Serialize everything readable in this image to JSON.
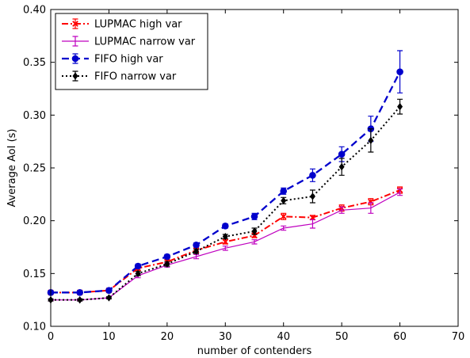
{
  "chart_data": {
    "type": "line",
    "title": "",
    "xlabel": "number of contenders",
    "ylabel": "Average AoI (s)",
    "xlim": [
      0,
      70
    ],
    "ylim": [
      0.1,
      0.4
    ],
    "xticks": [
      "0",
      "10",
      "20",
      "30",
      "40",
      "50",
      "60",
      "70"
    ],
    "yticks": [
      "0.10",
      "0.15",
      "0.20",
      "0.25",
      "0.30",
      "0.35",
      "0.40"
    ],
    "grid": false,
    "legend_position": "top-left",
    "x": [
      0,
      5,
      10,
      15,
      20,
      25,
      30,
      35,
      40,
      45,
      50,
      55,
      60
    ],
    "series": [
      {
        "name": "LUPMAC high var",
        "color": "#ff0000",
        "line_style": "dashdot",
        "marker": "x",
        "values": [
          0.132,
          0.132,
          0.134,
          0.155,
          0.161,
          0.172,
          0.18,
          0.186,
          0.204,
          0.203,
          0.212,
          0.218,
          0.229
        ],
        "errors": [
          0.001,
          0.001,
          0.001,
          0.002,
          0.002,
          0.002,
          0.002,
          0.002,
          0.003,
          0.002,
          0.003,
          0.003,
          0.003
        ]
      },
      {
        "name": "LUPMAC narrow var",
        "color": "#bf00bf",
        "line_style": "solid",
        "marker": "none",
        "values": [
          0.125,
          0.125,
          0.127,
          0.148,
          0.158,
          0.166,
          0.174,
          0.18,
          0.193,
          0.197,
          0.21,
          0.212,
          0.227
        ],
        "errors": [
          0.001,
          0.001,
          0.001,
          0.002,
          0.002,
          0.002,
          0.002,
          0.002,
          0.002,
          0.004,
          0.003,
          0.005,
          0.003
        ]
      },
      {
        "name": "FIFO high var",
        "color": "#0000cc",
        "line_style": "dashed",
        "marker": "circle",
        "values": [
          0.132,
          0.132,
          0.134,
          0.157,
          0.166,
          0.177,
          0.195,
          0.204,
          0.228,
          0.243,
          0.263,
          0.287,
          0.341
        ],
        "errors": [
          0.001,
          0.001,
          0.001,
          0.002,
          0.002,
          0.002,
          0.002,
          0.003,
          0.003,
          0.006,
          0.007,
          0.012,
          0.02
        ]
      },
      {
        "name": "FIFO narrow var",
        "color": "#000000",
        "line_style": "dotted",
        "marker": "diamond",
        "values": [
          0.125,
          0.125,
          0.127,
          0.15,
          0.159,
          0.171,
          0.185,
          0.19,
          0.219,
          0.223,
          0.251,
          0.276,
          0.308
        ],
        "errors": [
          0.001,
          0.001,
          0.001,
          0.002,
          0.002,
          0.002,
          0.002,
          0.003,
          0.003,
          0.006,
          0.008,
          0.011,
          0.007
        ]
      }
    ]
  }
}
